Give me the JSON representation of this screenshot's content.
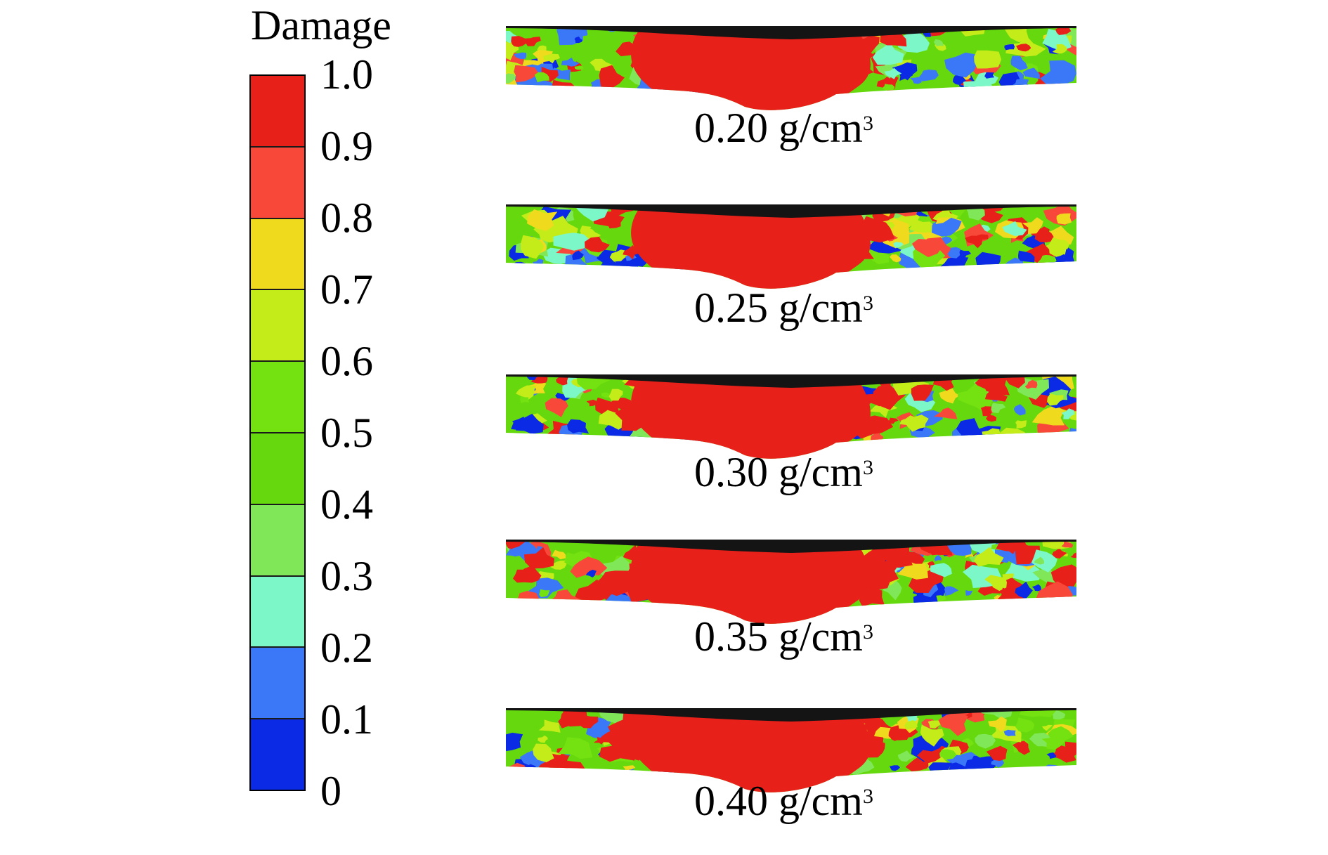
{
  "legend": {
    "title": "Damage",
    "ticks": [
      "1.0",
      "0.9",
      "0.8",
      "0.7",
      "0.6",
      "0.5",
      "0.4",
      "0.3",
      "0.2",
      "0.1",
      "0"
    ],
    "colors": [
      "#e8201a",
      "#f8483a",
      "#f0da1e",
      "#c4ec18",
      "#74e210",
      "#66d80e",
      "#80e858",
      "#7cf8c8",
      "#3a78f8",
      "#0a2ae6"
    ]
  },
  "panels": [
    {
      "density": "0.20",
      "unit": "g/cm",
      "exponent": "3"
    },
    {
      "density": "0.25",
      "unit": "g/cm",
      "exponent": "3"
    },
    {
      "density": "0.30",
      "unit": "g/cm",
      "exponent": "3"
    },
    {
      "density": "0.35",
      "unit": "g/cm",
      "exponent": "3"
    },
    {
      "density": "0.40",
      "unit": "g/cm",
      "exponent": "3"
    }
  ]
}
